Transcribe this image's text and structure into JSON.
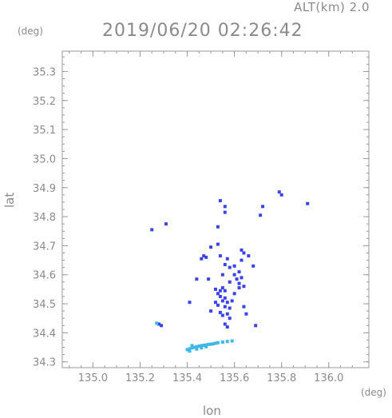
{
  "header": {
    "alt_label": "ALT(km) 2.0",
    "timestamp": "2019/06/20 02:26:42"
  },
  "colors": {
    "axis": "#9a9a9a",
    "echo_blue": "#3a44e6",
    "echo_cyan": "#3fb8e8",
    "echo_light": "#8fd6f2"
  },
  "chart_data": {
    "type": "scatter",
    "xlabel": "lon",
    "ylabel": "lat",
    "x_unit": "(deg)",
    "y_unit": "(deg)",
    "xlim": [
      134.87,
      136.17
    ],
    "ylim": [
      34.28,
      35.37
    ],
    "xticks": [
      "135.0",
      "135.2",
      "135.4",
      "135.6",
      "135.8",
      "136.0"
    ],
    "yticks": [
      "34.3",
      "34.4",
      "34.5",
      "34.6",
      "34.7",
      "34.8",
      "34.9",
      "35.0",
      "35.1",
      "35.2",
      "35.3"
    ],
    "series": [
      {
        "color": "#3a44e6",
        "points": [
          [
            135.25,
            34.755
          ],
          [
            135.31,
            34.775
          ],
          [
            135.54,
            34.855
          ],
          [
            135.56,
            34.835
          ],
          [
            135.56,
            34.815
          ],
          [
            135.72,
            34.835
          ],
          [
            135.71,
            34.805
          ],
          [
            135.79,
            34.885
          ],
          [
            135.8,
            34.875
          ],
          [
            135.91,
            34.845
          ],
          [
            135.53,
            34.765
          ],
          [
            135.5,
            34.695
          ],
          [
            135.47,
            34.665
          ],
          [
            135.46,
            34.655
          ],
          [
            135.48,
            34.66
          ],
          [
            135.53,
            34.705
          ],
          [
            135.63,
            34.685
          ],
          [
            135.64,
            34.675
          ],
          [
            135.66,
            34.665
          ],
          [
            135.57,
            34.655
          ],
          [
            135.54,
            34.665
          ],
          [
            135.56,
            34.635
          ],
          [
            135.58,
            34.625
          ],
          [
            135.6,
            34.63
          ],
          [
            135.62,
            34.61
          ],
          [
            135.6,
            34.6
          ],
          [
            135.55,
            34.6
          ],
          [
            135.49,
            34.585
          ],
          [
            135.58,
            34.575
          ],
          [
            135.62,
            34.57
          ],
          [
            135.61,
            34.585
          ],
          [
            135.63,
            34.59
          ],
          [
            135.44,
            34.585
          ],
          [
            135.55,
            34.555
          ],
          [
            135.56,
            34.545
          ],
          [
            135.53,
            34.535
          ],
          [
            135.54,
            34.525
          ],
          [
            135.55,
            34.51
          ],
          [
            135.57,
            34.505
          ],
          [
            135.53,
            34.495
          ],
          [
            135.56,
            34.49
          ],
          [
            135.58,
            34.485
          ],
          [
            135.54,
            34.47
          ],
          [
            135.55,
            34.46
          ],
          [
            135.57,
            34.465
          ],
          [
            135.52,
            34.505
          ],
          [
            135.54,
            34.545
          ],
          [
            135.56,
            34.52
          ],
          [
            135.59,
            34.51
          ],
          [
            135.6,
            34.535
          ],
          [
            135.64,
            34.49
          ],
          [
            135.65,
            34.465
          ],
          [
            135.62,
            34.555
          ],
          [
            135.64,
            34.56
          ],
          [
            135.41,
            34.505
          ],
          [
            135.56,
            34.43
          ],
          [
            135.57,
            34.42
          ],
          [
            135.69,
            34.425
          ],
          [
            135.28,
            34.43
          ],
          [
            135.29,
            34.425
          ],
          [
            135.5,
            34.475
          ],
          [
            135.58,
            34.45
          ],
          [
            135.52,
            34.55
          ],
          [
            135.63,
            34.65
          ],
          [
            135.68,
            34.63
          ]
        ]
      },
      {
        "color": "#3fb8e8",
        "points": [
          [
            135.4,
            34.342
          ],
          [
            135.41,
            34.345
          ],
          [
            135.42,
            34.348
          ],
          [
            135.43,
            34.35
          ],
          [
            135.44,
            34.352
          ],
          [
            135.45,
            34.354
          ],
          [
            135.46,
            34.356
          ],
          [
            135.47,
            34.357
          ],
          [
            135.48,
            34.358
          ],
          [
            135.49,
            34.36
          ],
          [
            135.5,
            34.361
          ],
          [
            135.51,
            34.362
          ],
          [
            135.52,
            34.364
          ],
          [
            135.53,
            34.366
          ],
          [
            135.55,
            34.368
          ],
          [
            135.57,
            34.37
          ],
          [
            135.59,
            34.372
          ],
          [
            135.42,
            34.356
          ],
          [
            135.44,
            34.344
          ],
          [
            135.46,
            34.348
          ],
          [
            135.48,
            34.352
          ],
          [
            135.27,
            34.433
          ],
          [
            135.41,
            34.337
          ]
        ]
      }
    ]
  }
}
